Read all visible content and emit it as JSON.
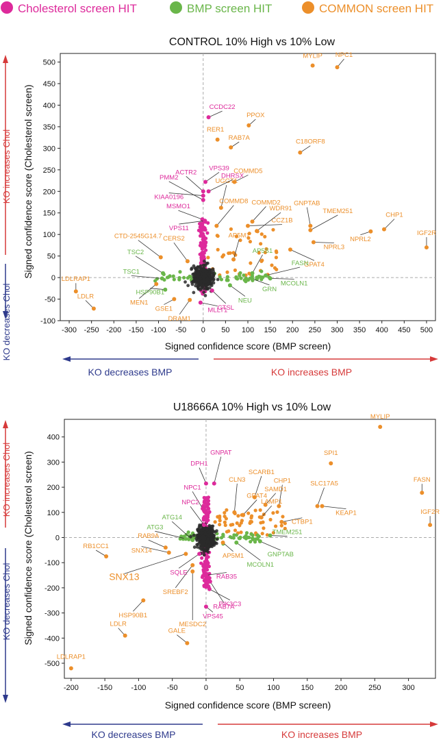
{
  "legend": [
    {
      "label": "Cholesterol screen HIT",
      "color": "#dd2a9b"
    },
    {
      "label": "BMP screen HIT",
      "color": "#6ab64a"
    },
    {
      "label": "COMMON screen HIT",
      "color": "#ec8f2a"
    }
  ],
  "colors": {
    "chol": "#dd2a9b",
    "bmp": "#6ab64a",
    "common": "#ec8f2a",
    "bulk": "#2a2a2a",
    "red": "#d63a3a",
    "blue": "#2e3a8c",
    "zero": "#aaaaaa"
  },
  "chart_data": [
    {
      "type": "scatter",
      "title": "CONTROL 10% High vs 10% Low",
      "xlabel": "Signed confidence score (BMP screen)",
      "ylabel": "Signed confidence score (Cholesterol screen)",
      "xlim": [
        -320,
        520
      ],
      "ylim": [
        -100,
        520
      ],
      "xticks": [
        -300,
        -250,
        -200,
        -150,
        -100,
        -50,
        0,
        50,
        100,
        150,
        200,
        250,
        300,
        350,
        400,
        450,
        500
      ],
      "yticks": [
        -100,
        -50,
        0,
        50,
        100,
        150,
        200,
        250,
        300,
        350,
        400,
        450,
        500
      ],
      "arrows": {
        "up": "KO increases Chol",
        "down": "KO decreases Chol",
        "left": "KO decreases BMP",
        "right": "KO increases BMP"
      },
      "labeled_points": [
        {
          "name": "MYLIP",
          "x": 245,
          "y": 492,
          "cat": "common",
          "dx": 0,
          "dy": -11
        },
        {
          "name": "NPC1",
          "x": 300,
          "y": 488,
          "cat": "common",
          "dx": 10,
          "dy": -15
        },
        {
          "name": "PPOX",
          "x": 102,
          "y": 353,
          "cat": "common",
          "dx": 10,
          "dy": -12
        },
        {
          "name": "RER1",
          "x": 32,
          "y": 320,
          "cat": "common",
          "dx": -3,
          "dy": -12
        },
        {
          "name": "RAB7A",
          "x": 62,
          "y": 302,
          "cat": "common",
          "dx": 12,
          "dy": -11
        },
        {
          "name": "C18ORF8",
          "x": 217,
          "y": 290,
          "cat": "common",
          "dx": 15,
          "dy": -13
        },
        {
          "name": "COMMD5",
          "x": 70,
          "y": 222,
          "cat": "common",
          "dx": 20,
          "dy": -13
        },
        {
          "name": "UGGT1",
          "x": 40,
          "y": 162,
          "cat": "common",
          "dx": 8,
          "dy": -36
        },
        {
          "name": "COMMD8",
          "x": 30,
          "y": 120,
          "cat": "common",
          "dx": 25,
          "dy": -33
        },
        {
          "name": "COMMD2",
          "x": 110,
          "y": 130,
          "cat": "common",
          "dx": 20,
          "dy": -25
        },
        {
          "name": "CCZ1B",
          "x": 100,
          "y": 120,
          "cat": "common",
          "dx": 50,
          "dy": -5
        },
        {
          "name": "GNPTAB",
          "x": 240,
          "y": 120,
          "cat": "common",
          "dx": -5,
          "dy": -30
        },
        {
          "name": "TMEM251",
          "x": 240,
          "y": 110,
          "cat": "common",
          "dx": 40,
          "dy": -25
        },
        {
          "name": "WDR91",
          "x": 120,
          "y": 108,
          "cat": "common",
          "dx": 35,
          "dy": -30
        },
        {
          "name": "NPRL2",
          "x": 375,
          "y": 107,
          "cat": "common",
          "dx": -15,
          "dy": 14
        },
        {
          "name": "CHP1",
          "x": 405,
          "y": 112,
          "cat": "common",
          "dx": 15,
          "dy": -18
        },
        {
          "name": "NPRL3",
          "x": 247,
          "y": 82,
          "cat": "common",
          "dx": 30,
          "dy": 10
        },
        {
          "name": "IGF2R",
          "x": 500,
          "y": 70,
          "cat": "common",
          "dx": 0,
          "dy": -18
        },
        {
          "name": "AP5M1",
          "x": 68,
          "y": 42,
          "cat": "common",
          "dx": 8,
          "dy": -32
        },
        {
          "name": "GPAT4",
          "x": 195,
          "y": 65,
          "cat": "common",
          "dx": 35,
          "dy": 25
        },
        {
          "name": "CTD-2545G14.7",
          "x": -95,
          "y": 47,
          "cat": "common",
          "dx": -33,
          "dy": -28
        },
        {
          "name": "CERS2",
          "x": -35,
          "y": 38,
          "cat": "common",
          "dx": -20,
          "dy": -30
        },
        {
          "name": "LDLRAP1",
          "x": -285,
          "y": -32,
          "cat": "common",
          "dx": 0,
          "dy": -15
        },
        {
          "name": "LDLR",
          "x": -245,
          "y": -72,
          "cat": "common",
          "dx": -12,
          "dy": -15
        },
        {
          "name": "MEN1",
          "x": -105,
          "y": -15,
          "cat": "common",
          "dx": -25,
          "dy": 30
        },
        {
          "name": "GSE1",
          "x": -65,
          "y": -50,
          "cat": "common",
          "dx": -15,
          "dy": 17
        },
        {
          "name": "DRAM1",
          "x": -30,
          "y": -52,
          "cat": "common",
          "dx": -15,
          "dy": 30
        },
        {
          "name": "CCDC22",
          "x": 12,
          "y": 372,
          "cat": "chol",
          "dx": 20,
          "dy": -12
        },
        {
          "name": "ACTR2",
          "x": 0,
          "y": 200,
          "cat": "chol",
          "dx": -25,
          "dy": -25
        },
        {
          "name": "VPS39",
          "x": 5,
          "y": 222,
          "cat": "chol",
          "dx": 20,
          "dy": -17
        },
        {
          "name": "PMM2",
          "x": 0,
          "y": 180,
          "cat": "chol",
          "dx": -50,
          "dy": -30
        },
        {
          "name": "DHRSX",
          "x": 12,
          "y": 200,
          "cat": "chol",
          "dx": 35,
          "dy": -20
        },
        {
          "name": "KIAA0196",
          "x": 0,
          "y": 190,
          "cat": "chol",
          "dx": -50,
          "dy": 5
        },
        {
          "name": "MSMO1",
          "x": -2,
          "y": 135,
          "cat": "chol",
          "dx": -35,
          "dy": -16
        },
        {
          "name": "VPS11",
          "x": 4,
          "y": 132,
          "cat": "chol",
          "dx": -38,
          "dy": 14
        },
        {
          "name": "CTSL",
          "x": 20,
          "y": -30,
          "cat": "chol",
          "dx": 20,
          "dy": 28
        },
        {
          "name": "MLLT1",
          "x": -6,
          "y": -58,
          "cat": "chol",
          "dx": 25,
          "dy": 14
        },
        {
          "name": "TSC2",
          "x": -90,
          "y": 10,
          "cat": "bmp",
          "dx": -40,
          "dy": -28
        },
        {
          "name": "TSC1",
          "x": -92,
          "y": -2,
          "cat": "bmp",
          "dx": -45,
          "dy": -7
        },
        {
          "name": "HSP90B1",
          "x": -85,
          "y": -28,
          "cat": "bmp",
          "dx": -22,
          "dy": 7
        },
        {
          "name": "AP5S1",
          "x": 110,
          "y": 10,
          "cat": "bmp",
          "dx": 15,
          "dy": -30
        },
        {
          "name": "FASN",
          "x": 140,
          "y": 5,
          "cat": "bmp",
          "dx": 50,
          "dy": -15
        },
        {
          "name": "NEU",
          "x": 60,
          "y": -18,
          "cat": "bmp",
          "dx": 22,
          "dy": 25
        },
        {
          "name": "GRN",
          "x": 110,
          "y": -3,
          "cat": "bmp",
          "dx": 25,
          "dy": 18
        },
        {
          "name": "MCOLN1",
          "x": 150,
          "y": -2,
          "cat": "bmp",
          "dx": 35,
          "dy": 10
        }
      ]
    },
    {
      "type": "scatter",
      "title": "U18666A 10% High vs 10% Low",
      "xlabel": "Signed confidence score (BMP screen)",
      "ylabel": "Signed confidence score (Cholesterol screen)",
      "xlim": [
        -210,
        340
      ],
      "ylim": [
        -560,
        470
      ],
      "xticks": [
        -200,
        -150,
        -100,
        -50,
        0,
        50,
        100,
        150,
        200,
        250,
        300
      ],
      "yticks": [
        -500,
        -400,
        -300,
        -200,
        -100,
        0,
        100,
        200,
        300,
        400
      ],
      "arrows": {
        "up": "KO increases Chol",
        "down": "KO decreases Chol",
        "left": "KO decreases BMP",
        "right": "KO increases BMP"
      },
      "labeled_points": [
        {
          "name": "MYLIP",
          "x": 258,
          "y": 440,
          "cat": "common",
          "dx": 0,
          "dy": -12
        },
        {
          "name": "SPI1",
          "x": 185,
          "y": 295,
          "cat": "common",
          "dx": 0,
          "dy": -12
        },
        {
          "name": "FASN",
          "x": 320,
          "y": 178,
          "cat": "common",
          "dx": 0,
          "dy": -16
        },
        {
          "name": "IGF2R",
          "x": 332,
          "y": 50,
          "cat": "common",
          "dx": 0,
          "dy": -16
        },
        {
          "name": "SCARB1",
          "x": 72,
          "y": 160,
          "cat": "common",
          "dx": 10,
          "dy": -34
        },
        {
          "name": "CHP1",
          "x": 108,
          "y": 125,
          "cat": "common",
          "dx": 5,
          "dy": -34
        },
        {
          "name": "SLC17A5",
          "x": 165,
          "y": 125,
          "cat": "common",
          "dx": 10,
          "dy": -30
        },
        {
          "name": "KEAP1",
          "x": 172,
          "y": 125,
          "cat": "common",
          "dx": 35,
          "dy": 13
        },
        {
          "name": "CLN3",
          "x": 42,
          "y": 100,
          "cat": "common",
          "dx": 4,
          "dy": -45
        },
        {
          "name": "GPAT4",
          "x": 55,
          "y": 90,
          "cat": "common",
          "dx": 20,
          "dy": -25
        },
        {
          "name": "SAMD1",
          "x": 88,
          "y": 130,
          "cat": "common",
          "dx": 15,
          "dy": -20
        },
        {
          "name": "LAMP1",
          "x": 82,
          "y": 80,
          "cat": "common",
          "dx": 15,
          "dy": -20
        },
        {
          "name": "CTBP1",
          "x": 112,
          "y": 62,
          "cat": "common",
          "dx": 30,
          "dy": 3
        },
        {
          "name": "RB1CC1",
          "x": -148,
          "y": -75,
          "cat": "common",
          "dx": -15,
          "dy": -12
        },
        {
          "name": "RAB9A",
          "x": -60,
          "y": -40,
          "cat": "common",
          "dx": -25,
          "dy": -14
        },
        {
          "name": "SNX14",
          "x": -55,
          "y": -60,
          "cat": "common",
          "dx": -40,
          "dy": 0
        },
        {
          "name": "SNX13",
          "x": -30,
          "y": -65,
          "cat": "common",
          "dx": -90,
          "dy": 38,
          "big": true
        },
        {
          "name": "SREBF2",
          "x": -20,
          "y": -110,
          "cat": "common",
          "dx": -25,
          "dy": 42
        },
        {
          "name": "MESDC2",
          "x": -20,
          "y": -135,
          "cat": "common",
          "dx": 0,
          "dy": 80
        },
        {
          "name": "HSP90B1",
          "x": -93,
          "y": -250,
          "cat": "common",
          "dx": -15,
          "dy": 25
        },
        {
          "name": "LDLR",
          "x": -120,
          "y": -390,
          "cat": "common",
          "dx": -10,
          "dy": -14
        },
        {
          "name": "GALE",
          "x": -28,
          "y": -420,
          "cat": "common",
          "dx": -15,
          "dy": -15
        },
        {
          "name": "LDLRAP1",
          "x": -200,
          "y": -520,
          "cat": "common",
          "dx": 0,
          "dy": -14
        },
        {
          "name": "AP5M1",
          "x": 25,
          "y": -20,
          "cat": "common",
          "dx": 15,
          "dy": 22
        },
        {
          "name": "GNPAT",
          "x": 12,
          "y": 215,
          "cat": "chol",
          "dx": 10,
          "dy": -42
        },
        {
          "name": "DPH1",
          "x": 0,
          "y": 215,
          "cat": "chol",
          "dx": -10,
          "dy": -26
        },
        {
          "name": "NPC1",
          "x": -5,
          "y": 115,
          "cat": "chol",
          "dx": -15,
          "dy": -28
        },
        {
          "name": "NPC2",
          "x": -3,
          "y": 50,
          "cat": "chol",
          "dx": -20,
          "dy": -30
        },
        {
          "name": "SQLE",
          "x": -10,
          "y": -65,
          "cat": "chol",
          "dx": -30,
          "dy": 30
        },
        {
          "name": "RAB35",
          "x": 0,
          "y": -150,
          "cat": "chol",
          "dx": 30,
          "dy": 5
        },
        {
          "name": "RAB7A",
          "x": 6,
          "y": -175,
          "cat": "chol",
          "dx": 20,
          "dy": 40
        },
        {
          "name": "PIK3C3",
          "x": 5,
          "y": -205,
          "cat": "chol",
          "dx": 30,
          "dy": 25
        },
        {
          "name": "VPS45",
          "x": 0,
          "y": -275,
          "cat": "chol",
          "dx": 10,
          "dy": 17
        },
        {
          "name": "ATG14",
          "x": -20,
          "y": -10,
          "cat": "bmp",
          "dx": -30,
          "dy": -30
        },
        {
          "name": "ATG3",
          "x": -30,
          "y": -5,
          "cat": "bmp",
          "dx": -45,
          "dy": -14
        },
        {
          "name": "TMEM251",
          "x": 95,
          "y": 8,
          "cat": "bmp",
          "dx": 25,
          "dy": -2
        },
        {
          "name": "GNPTAB",
          "x": 80,
          "y": -15,
          "cat": "bmp",
          "dx": 30,
          "dy": 22
        },
        {
          "name": "MCOLN1",
          "x": 45,
          "y": -20,
          "cat": "bmp",
          "dx": 35,
          "dy": 35
        }
      ]
    }
  ]
}
